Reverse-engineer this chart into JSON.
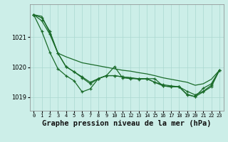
{
  "background_color": "#cceee8",
  "grid_color": "#aad8d0",
  "line_color": "#1a6b2a",
  "xlabel": "Graphe pression niveau de la mer (hPa)",
  "ylim": [
    1018.55,
    1022.1
  ],
  "xlim": [
    -0.5,
    23.5
  ],
  "yticks": [
    1019,
    1020,
    1021
  ],
  "xticks": [
    0,
    1,
    2,
    3,
    4,
    5,
    6,
    7,
    8,
    9,
    10,
    11,
    12,
    13,
    14,
    15,
    16,
    17,
    18,
    19,
    20,
    21,
    22,
    23
  ],
  "series": [
    {
      "y": [
        1021.75,
        1021.7,
        1021.15,
        1020.47,
        1020.35,
        1020.25,
        1020.15,
        1020.1,
        1020.05,
        1020.0,
        1019.95,
        1019.9,
        1019.87,
        1019.82,
        1019.78,
        1019.72,
        1019.65,
        1019.6,
        1019.55,
        1019.5,
        1019.4,
        1019.45,
        1019.6,
        1019.9
      ],
      "has_markers": false
    },
    {
      "y": [
        1021.75,
        1021.55,
        1021.1,
        1020.47,
        1020.02,
        1019.85,
        1019.68,
        1019.5,
        1019.62,
        1019.72,
        1019.72,
        1019.68,
        1019.65,
        1019.62,
        1019.62,
        1019.5,
        1019.42,
        1019.38,
        1019.35,
        1019.2,
        1019.08,
        1019.2,
        1019.4,
        1019.9
      ],
      "has_markers": true
    },
    {
      "y": [
        1021.75,
        1021.2,
        1020.5,
        1019.95,
        1019.72,
        1019.55,
        1019.18,
        1019.28,
        1019.62,
        1019.72,
        1020.02,
        1019.65,
        1019.62,
        1019.62,
        1019.62,
        1019.62,
        1019.38,
        1019.35,
        1019.35,
        1019.08,
        1019.02,
        1019.3,
        1019.45,
        1019.9
      ],
      "has_markers": true
    },
    {
      "y": [
        1021.75,
        1021.65,
        1021.2,
        1020.47,
        1020.02,
        1019.85,
        1019.65,
        1019.45,
        1019.62,
        1019.72,
        1019.72,
        1019.68,
        1019.65,
        1019.6,
        1019.62,
        1019.5,
        1019.38,
        1019.35,
        1019.35,
        1019.1,
        1019.02,
        1019.18,
        1019.35,
        1019.9
      ],
      "has_markers": true
    }
  ],
  "markersize": 3,
  "linewidth": 0.9,
  "xlabel_fontsize": 7.5,
  "tick_fontsize": 6
}
